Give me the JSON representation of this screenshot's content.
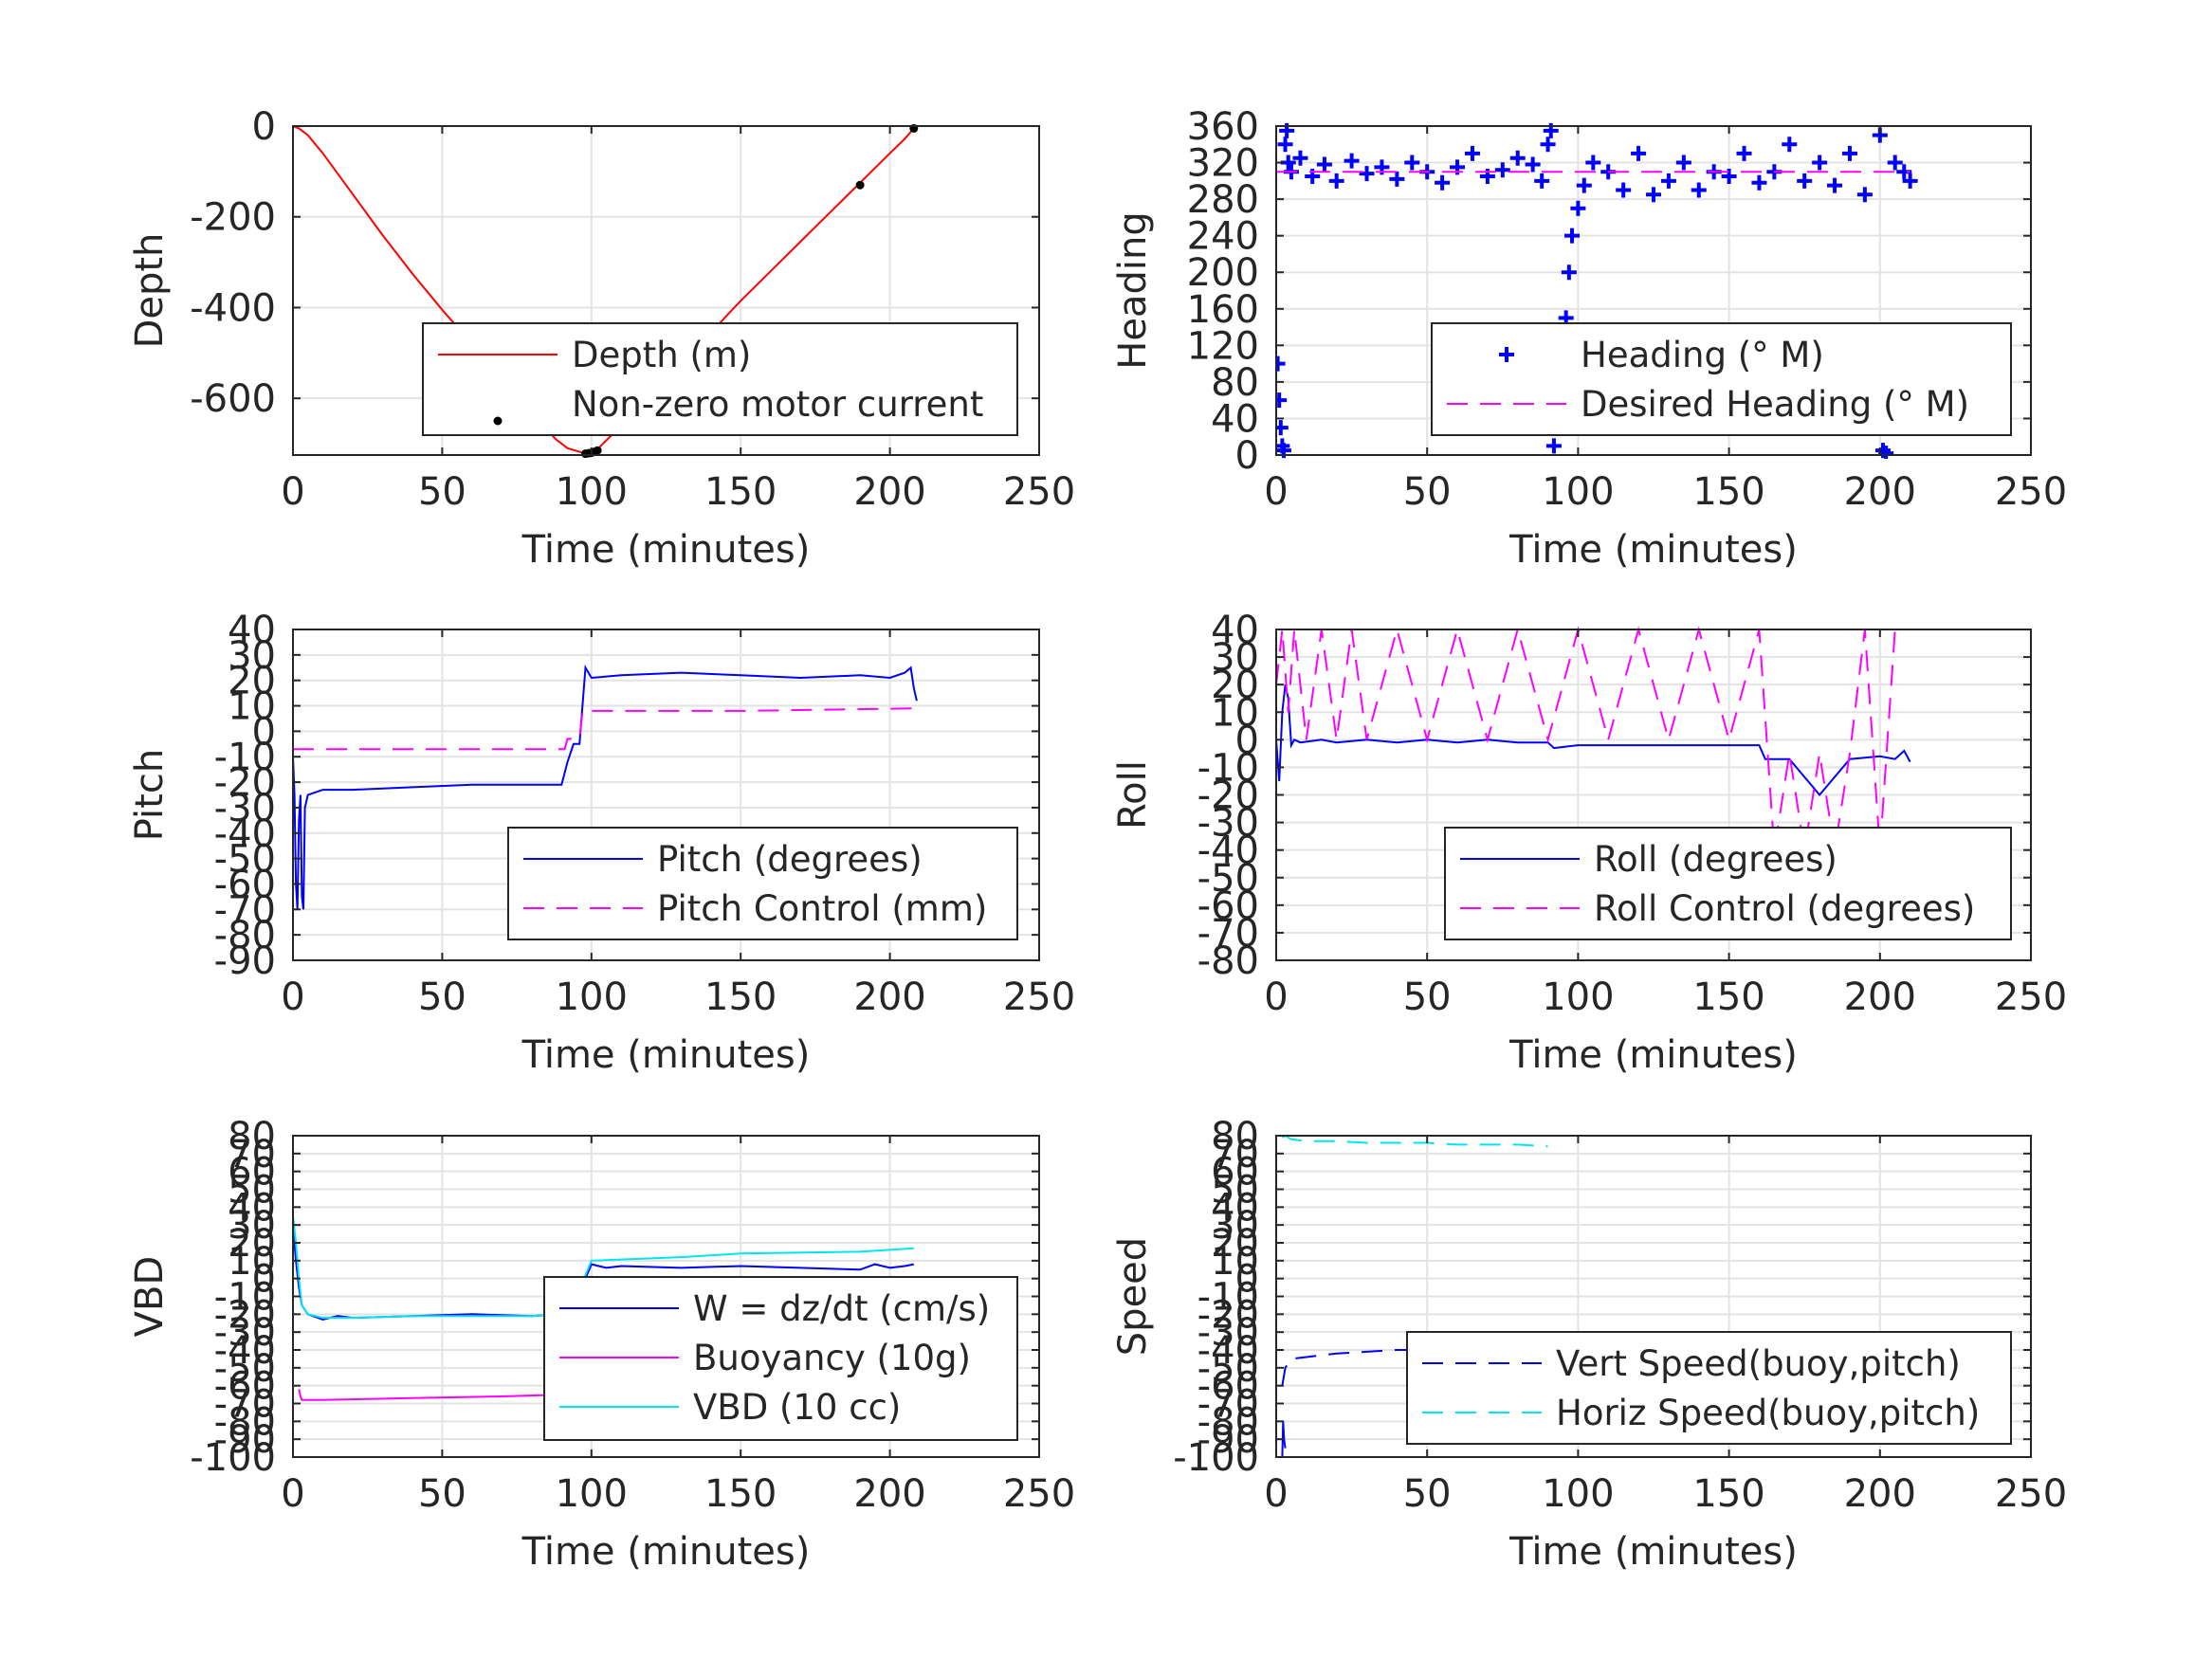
{
  "figure": {
    "background": "#ffffff"
  },
  "chart_data": [
    {
      "id": "depth",
      "type": "line",
      "xlabel": "Time (minutes)",
      "ylabel": "Depth",
      "xlim": [
        0,
        250
      ],
      "ylim": [
        -725,
        0
      ],
      "xticks": [
        0,
        50,
        100,
        150,
        200,
        250
      ],
      "yticks": [
        0,
        -200,
        -400,
        -600
      ],
      "ytick_labels": [
        "0",
        "-200",
        "-400",
        "-600"
      ],
      "grid": true,
      "legend_position": "lower-right",
      "series": [
        {
          "name": "Depth (m)",
          "style": "solid",
          "marker": "none",
          "color": "#ff0000",
          "x": [
            0,
            2,
            5,
            10,
            20,
            30,
            40,
            50,
            60,
            70,
            80,
            88,
            92,
            96,
            98,
            100,
            102,
            110,
            120,
            130,
            140,
            150,
            160,
            170,
            180,
            190,
            200,
            205,
            208
          ],
          "y": [
            0,
            -5,
            -20,
            -60,
            -150,
            -240,
            -325,
            -405,
            -480,
            -555,
            -630,
            -690,
            -710,
            -718,
            -722,
            -720,
            -712,
            -660,
            -590,
            -520,
            -455,
            -385,
            -320,
            -255,
            -190,
            -125,
            -60,
            -28,
            -5
          ]
        },
        {
          "name": "Non-zero motor current",
          "style": "none",
          "marker": "dot",
          "color": "#000000",
          "x": [
            98,
            99,
            100,
            101,
            102,
            128,
            142,
            190,
            208
          ],
          "y": [
            -722,
            -721,
            -720,
            -718,
            -715,
            -535,
            -455,
            -130,
            -5
          ]
        }
      ]
    },
    {
      "id": "heading",
      "type": "scatter",
      "xlabel": "Time (minutes)",
      "ylabel": "Heading",
      "xlim": [
        0,
        250
      ],
      "ylim": [
        0,
        360
      ],
      "xticks": [
        0,
        50,
        100,
        150,
        200,
        250
      ],
      "yticks": [
        0,
        40,
        80,
        120,
        160,
        200,
        240,
        280,
        320,
        360
      ],
      "ytick_labels": [
        "0",
        "40",
        "80",
        "120",
        "160",
        "200",
        "240",
        "280",
        "320",
        "360"
      ],
      "grid": true,
      "legend_position": "lower-right",
      "series": [
        {
          "name": "Heading (° M)",
          "style": "none",
          "marker": "plus",
          "color": "#0000ff",
          "x": [
            0.5,
            1,
            1.5,
            2,
            2.5,
            3,
            3.5,
            4,
            5,
            8,
            12,
            16,
            20,
            25,
            30,
            35,
            40,
            45,
            50,
            55,
            60,
            65,
            70,
            75,
            80,
            85,
            88,
            90,
            91,
            92,
            93,
            94,
            95,
            96,
            97,
            98,
            100,
            102,
            105,
            110,
            115,
            120,
            125,
            130,
            135,
            140,
            145,
            150,
            155,
            160,
            165,
            170,
            175,
            180,
            185,
            190,
            195,
            200,
            201,
            202,
            205,
            208,
            210
          ],
          "y": [
            100,
            60,
            30,
            10,
            5,
            340,
            355,
            320,
            310,
            325,
            305,
            318,
            300,
            322,
            308,
            315,
            302,
            320,
            310,
            298,
            315,
            330,
            305,
            312,
            325,
            318,
            300,
            340,
            355,
            10,
            30,
            60,
            100,
            150,
            200,
            240,
            270,
            295,
            320,
            310,
            290,
            330,
            285,
            300,
            320,
            290,
            310,
            305,
            330,
            298,
            310,
            340,
            300,
            320,
            295,
            330,
            285,
            350,
            5,
            2,
            320,
            310,
            300
          ]
        },
        {
          "name": "Desired Heading (° M)",
          "style": "dashed",
          "marker": "none",
          "color": "#ff00ff",
          "x": [
            0,
            210
          ],
          "y": [
            310,
            310
          ]
        }
      ]
    },
    {
      "id": "pitch",
      "type": "line",
      "xlabel": "Time (minutes)",
      "ylabel": "Pitch",
      "xlim": [
        0,
        250
      ],
      "ylim": [
        -90,
        40
      ],
      "xticks": [
        0,
        50,
        100,
        150,
        200,
        250
      ],
      "yticks": [
        40,
        30,
        20,
        10,
        0,
        -10,
        -20,
        -30,
        -40,
        -50,
        -60,
        -70,
        -80,
        -90
      ],
      "ytick_labels": [
        "40",
        "30",
        "20",
        "10",
        "0",
        "-10",
        "-20",
        "-30",
        "-40",
        "-50",
        "-60",
        "-70",
        "-80",
        "-90"
      ],
      "grid": true,
      "legend_position": "lower-right",
      "series": [
        {
          "name": "Pitch (degrees)",
          "style": "solid",
          "marker": "none",
          "color": "#0000ff",
          "x": [
            0,
            0.5,
            1,
            1.5,
            2,
            2.5,
            3,
            3.5,
            4,
            5,
            10,
            20,
            40,
            60,
            80,
            90,
            92,
            94,
            96,
            98,
            100,
            110,
            130,
            150,
            170,
            190,
            200,
            205,
            207,
            208,
            209
          ],
          "y": [
            -10,
            -25,
            -60,
            -70,
            -35,
            -25,
            -65,
            -70,
            -30,
            -25,
            -23,
            -23,
            -22,
            -21,
            -21,
            -21,
            -12,
            -5,
            -5,
            25,
            21,
            22,
            23,
            22,
            21,
            22,
            21,
            23,
            25,
            17,
            12
          ]
        },
        {
          "name": "Pitch Control (mm)",
          "style": "dashed",
          "marker": "none",
          "color": "#ff00ff",
          "x": [
            0,
            91,
            92,
            96,
            97,
            150,
            209
          ],
          "y": [
            -7,
            -7,
            -3,
            -3,
            8,
            8,
            9
          ]
        }
      ]
    },
    {
      "id": "roll",
      "type": "line",
      "xlabel": "Time (minutes)",
      "ylabel": "Roll",
      "xlim": [
        0,
        250
      ],
      "ylim": [
        -80,
        40
      ],
      "xticks": [
        0,
        50,
        100,
        150,
        200,
        250
      ],
      "yticks": [
        40,
        30,
        20,
        10,
        0,
        -10,
        -20,
        -30,
        -40,
        -50,
        -60,
        -70,
        -80
      ],
      "ytick_labels": [
        "40",
        "30",
        "20",
        "10",
        "0",
        "-10",
        "-20",
        "-30",
        "-40",
        "-50",
        "-60",
        "-70",
        "-80"
      ],
      "grid": true,
      "legend_position": "lower-right",
      "series": [
        {
          "name": "Roll (degrees)",
          "style": "solid",
          "marker": "none",
          "color": "#0000ff",
          "x": [
            0,
            1,
            2,
            3,
            4,
            5,
            6,
            8,
            15,
            20,
            30,
            40,
            50,
            60,
            70,
            80,
            90,
            92,
            100,
            120,
            140,
            160,
            162,
            170,
            180,
            190,
            200,
            205,
            208,
            210
          ],
          "y": [
            0,
            -15,
            10,
            20,
            15,
            -2,
            0,
            -1,
            0,
            -1,
            0,
            -1,
            0,
            -1,
            0,
            -1,
            -1,
            -3,
            -2,
            -2,
            -2,
            -2,
            -7,
            -7,
            -20,
            -7,
            -6,
            -7,
            -4,
            -8
          ]
        },
        {
          "name": "Roll Control (degrees)",
          "style": "dashed",
          "marker": "none",
          "color": "#ff00ff",
          "x": [
            0,
            2,
            4,
            6,
            10,
            15,
            20,
            25,
            30,
            40,
            50,
            60,
            70,
            80,
            90,
            100,
            110,
            120,
            130,
            140,
            150,
            160,
            165,
            170,
            175,
            180,
            185,
            190,
            195,
            200,
            205
          ],
          "y": [
            20,
            40,
            10,
            40,
            0,
            40,
            0,
            40,
            0,
            40,
            0,
            40,
            0,
            40,
            0,
            40,
            0,
            40,
            0,
            40,
            0,
            40,
            -40,
            -5,
            -40,
            -5,
            -40,
            -5,
            40,
            -40,
            40
          ]
        }
      ]
    },
    {
      "id": "vbd",
      "type": "line",
      "xlabel": "Time (minutes)",
      "ylabel": "VBD",
      "xlim": [
        0,
        250
      ],
      "ylim": [
        -100,
        80
      ],
      "xticks": [
        0,
        50,
        100,
        150,
        200,
        250
      ],
      "yticks": [
        -100,
        -90,
        -80,
        -70,
        -60,
        -50,
        -40,
        -30,
        -20,
        -10,
        0,
        10,
        20,
        30,
        40,
        50,
        60,
        70,
        80
      ],
      "ytick_labels": [
        "-100",
        "-90",
        "-80",
        "-70",
        "-60",
        "-50",
        "-40",
        "-30",
        "-20",
        "-10",
        "0",
        "10",
        "20",
        "30",
        "40",
        "50",
        "60",
        "70",
        "80"
      ],
      "grid": true,
      "legend_position": "lower-right",
      "series": [
        {
          "name": "W = dz/dt (cm/s)",
          "style": "solid",
          "marker": "none",
          "color": "#0000ff",
          "x": [
            0,
            1,
            2,
            3,
            5,
            10,
            15,
            20,
            40,
            60,
            80,
            90,
            92,
            95,
            98,
            100,
            105,
            110,
            130,
            150,
            170,
            190,
            195,
            200,
            205,
            208
          ],
          "y": [
            30,
            10,
            -5,
            -15,
            -20,
            -23,
            -21,
            -22,
            -21,
            -20,
            -21,
            -20,
            -18,
            -10,
            0,
            8,
            6,
            7,
            6,
            7,
            6,
            5,
            8,
            6,
            7,
            8
          ]
        },
        {
          "name": "Buoyancy (10g)",
          "style": "solid",
          "marker": "none",
          "color": "#ff00ff",
          "x": [
            2,
            2.5,
            3,
            10,
            40,
            70,
            90
          ],
          "y": [
            -62,
            -66,
            -68,
            -68,
            -67,
            -66,
            -65
          ]
        },
        {
          "name": "VBD (10 cc)",
          "style": "solid",
          "marker": "none",
          "color": "#00e5ee",
          "x": [
            0,
            1,
            2,
            3,
            5,
            10,
            20,
            40,
            60,
            80,
            90,
            95,
            100,
            130,
            150,
            190,
            208
          ],
          "y": [
            35,
            20,
            0,
            -15,
            -20,
            -22,
            -22,
            -21,
            -21,
            -21,
            -20,
            -10,
            10,
            12,
            14,
            15,
            17
          ]
        }
      ]
    },
    {
      "id": "speed",
      "type": "line",
      "xlabel": "Time (minutes)",
      "ylabel": "Speed",
      "xlim": [
        0,
        250
      ],
      "ylim": [
        -100,
        80
      ],
      "xticks": [
        0,
        50,
        100,
        150,
        200,
        250
      ],
      "yticks": [
        -100,
        -90,
        -80,
        -70,
        -60,
        -50,
        -40,
        -30,
        -20,
        -10,
        0,
        10,
        20,
        30,
        40,
        50,
        60,
        70,
        80
      ],
      "ytick_labels": [
        "-100",
        "-90",
        "-80",
        "-70",
        "-60",
        "-50",
        "-40",
        "-30",
        "-20",
        "-10",
        "0",
        "10",
        "20",
        "30",
        "40",
        "50",
        "60",
        "70",
        "80"
      ],
      "grid": true,
      "legend_position": "lower-right",
      "series": [
        {
          "name": "Vert Speed(buoy,pitch)",
          "style": "dashed",
          "marker": "none",
          "color": "#0000ff",
          "x": [
            2,
            3,
            5,
            10,
            20,
            30,
            40,
            50,
            60,
            70,
            80,
            90
          ],
          "y": [
            -60,
            -50,
            -45,
            -44,
            -42,
            -41,
            -40,
            -40,
            -39,
            -39,
            -38,
            -38
          ]
        },
        {
          "name": "",
          "style": "solid",
          "marker": "none",
          "color": "#0000ff",
          "x": [
            2,
            2.3,
            2.6,
            3
          ],
          "y": [
            -100,
            -80,
            -90,
            -95
          ]
        },
        {
          "name": "Horiz Speed(buoy,pitch)",
          "style": "dashed",
          "marker": "none",
          "color": "#00e5ee",
          "x": [
            2,
            3,
            5,
            10,
            20,
            30,
            40,
            50,
            60,
            70,
            80,
            90
          ],
          "y": [
            79,
            80,
            78,
            77,
            77,
            76,
            76,
            76,
            75,
            75,
            75,
            74
          ]
        }
      ]
    }
  ]
}
